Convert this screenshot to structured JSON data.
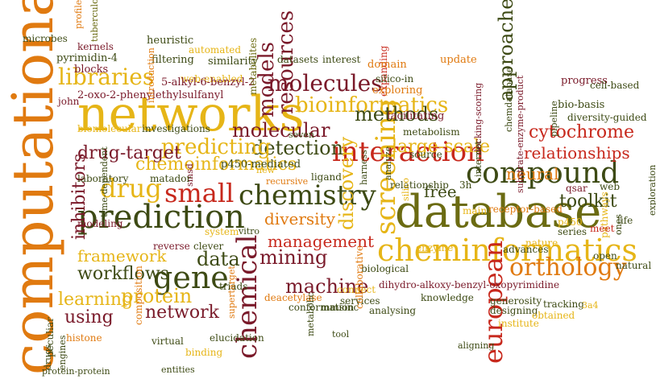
{
  "palette": {
    "orange": "#e07a10",
    "gold": "#e6b517",
    "olive": "#6b6b12",
    "dark_green": "#3d4a14",
    "maroon": "#7a1a2a",
    "red": "#c7281c",
    "brown": "#8a5a18"
  },
  "words": [
    {
      "text": "computational",
      "color": "#e07a10",
      "vertical": true
    },
    {
      "text": "networks",
      "color": "#e6b517",
      "vertical": false
    },
    {
      "text": "database",
      "color": "#6b6b12",
      "vertical": false
    },
    {
      "text": "prediction",
      "color": "#3d4a14",
      "vertical": false
    },
    {
      "text": "cheminformatics",
      "color": "#e6b517",
      "vertical": false
    },
    {
      "text": "compound",
      "color": "#3d4a14",
      "vertical": false
    },
    {
      "text": "chemistry",
      "color": "#3d4a14",
      "vertical": false
    },
    {
      "text": "interaction",
      "color": "#c7281c",
      "vertical": false
    },
    {
      "text": "gene",
      "color": "#3d4a14",
      "vertical": false
    },
    {
      "text": "small",
      "color": "#c7281c",
      "vertical": false
    },
    {
      "text": "drug",
      "color": "#e6b517",
      "vertical": false
    },
    {
      "text": "chemical",
      "color": "#7a1a2a",
      "vertical": true
    },
    {
      "text": "screening",
      "color": "#e6b517",
      "vertical": true
    },
    {
      "text": "orthology",
      "color": "#e07a10",
      "vertical": false
    },
    {
      "text": "european",
      "color": "#c7281c",
      "vertical": true
    },
    {
      "text": "molecules",
      "color": "#7a1a2a",
      "vertical": false
    },
    {
      "text": "bioinformatics",
      "color": "#e6b517",
      "vertical": false
    },
    {
      "text": "methods",
      "color": "#3d4a14",
      "vertical": false
    },
    {
      "text": "libraries",
      "color": "#e6b517",
      "vertical": false
    },
    {
      "text": "models",
      "color": "#7a1a2a",
      "vertical": true
    },
    {
      "text": "resources",
      "color": "#7a1a2a",
      "vertical": true
    },
    {
      "text": "molecular",
      "color": "#7a1a2a",
      "vertical": false
    },
    {
      "text": "detection",
      "color": "#3d4a14",
      "vertical": false
    },
    {
      "text": "discovery",
      "color": "#e6b517",
      "vertical": true
    },
    {
      "text": "large-scale",
      "color": "#e6b517",
      "vertical": false
    },
    {
      "text": "approaches",
      "color": "#3d4a14",
      "vertical": true
    },
    {
      "text": "cytochrome",
      "color": "#c7281c",
      "vertical": false
    },
    {
      "text": "relationships",
      "color": "#c7281c",
      "vertical": false
    },
    {
      "text": "neural",
      "color": "#e07a10",
      "vertical": false
    },
    {
      "text": "toolkit",
      "color": "#3d4a14",
      "vertical": false
    },
    {
      "text": "predicting",
      "color": "#e6b517",
      "vertical": false
    },
    {
      "text": "drug-target",
      "color": "#7a1a2a",
      "vertical": false
    },
    {
      "text": "chemoinformatics",
      "color": "#e6b517",
      "vertical": false
    },
    {
      "text": "inhibitors",
      "color": "#7a1a2a",
      "vertical": true
    },
    {
      "text": "framework",
      "color": "#e6b517",
      "vertical": false
    },
    {
      "text": "data",
      "color": "#3d4a14",
      "vertical": false
    },
    {
      "text": "mining",
      "color": "#7a1a2a",
      "vertical": false
    },
    {
      "text": "management",
      "color": "#c7281c",
      "vertical": false
    },
    {
      "text": "diversity",
      "color": "#e07a10",
      "vertical": false
    },
    {
      "text": "free",
      "color": "#3d4a14",
      "vertical": false
    },
    {
      "text": "workflows",
      "color": "#3d4a14",
      "vertical": false
    },
    {
      "text": "machine",
      "color": "#7a1a2a",
      "vertical": false
    },
    {
      "text": "learning",
      "color": "#e6b517",
      "vertical": false
    },
    {
      "text": "protein",
      "color": "#e6b517",
      "vertical": false
    },
    {
      "text": "network",
      "color": "#7a1a2a",
      "vertical": false
    },
    {
      "text": "using",
      "color": "#7a1a2a",
      "vertical": false
    },
    {
      "text": "microbes",
      "color": "#3d4a14",
      "vertical": false
    },
    {
      "text": "profile",
      "color": "#e07a10",
      "vertical": true
    },
    {
      "text": "tuberculosis",
      "color": "#6b6b12",
      "vertical": true
    },
    {
      "text": "kernels",
      "color": "#7a1a2a",
      "vertical": false
    },
    {
      "text": "pyrimidin-4",
      "color": "#3d4a14",
      "vertical": false
    },
    {
      "text": "blocks",
      "color": "#7a1a2a",
      "vertical": false
    },
    {
      "text": "heuristic",
      "color": "#3d4a14",
      "vertical": false
    },
    {
      "text": "automated",
      "color": "#e6b517",
      "vertical": false
    },
    {
      "text": "filtering",
      "color": "#3d4a14",
      "vertical": false
    },
    {
      "text": "similarity",
      "color": "#3d4a14",
      "vertical": false
    },
    {
      "text": "web-enabled",
      "color": "#e6b517",
      "vertical": false
    },
    {
      "text": "5-alkyl-6-benzyl-2",
      "color": "#7a1a2a",
      "vertical": false
    },
    {
      "text": "john",
      "color": "#7a1a2a",
      "vertical": false
    },
    {
      "text": "2-oxo-2-phenylethylsulfanyl",
      "color": "#7a1a2a",
      "vertical": false
    },
    {
      "text": "introduction",
      "color": "#e07a10",
      "vertical": true
    },
    {
      "text": "metabolites",
      "color": "#6b6b12",
      "vertical": true
    },
    {
      "text": "datasets",
      "color": "#3d4a14",
      "vertical": false
    },
    {
      "text": "interest",
      "color": "#3d4a14",
      "vertical": false
    },
    {
      "text": "expanding",
      "color": "#c7281c",
      "vertical": true
    },
    {
      "text": "silico-in",
      "color": "#3d4a14",
      "vertical": false
    },
    {
      "text": "domain",
      "color": "#e07a10",
      "vertical": false
    },
    {
      "text": "exploring",
      "color": "#e07a10",
      "vertical": false
    },
    {
      "text": "facilitating",
      "color": "#7a1a2a",
      "vertical": false
    },
    {
      "text": "update",
      "color": "#e07a10",
      "vertical": false
    },
    {
      "text": "docking-scoring",
      "color": "#7a1a2a",
      "vertical": true
    },
    {
      "text": "substrate-enzyme-product",
      "color": "#7a1a2a",
      "vertical": true
    },
    {
      "text": "chemdatabase",
      "color": "#3d4a14",
      "vertical": true
    },
    {
      "text": "pipeline",
      "color": "#3d4a14",
      "vertical": true
    },
    {
      "text": "progress",
      "color": "#7a1a2a",
      "vertical": false
    },
    {
      "text": "bio-basis",
      "color": "#3d4a14",
      "vertical": false
    },
    {
      "text": "cell-based",
      "color": "#3d4a14",
      "vertical": false
    },
    {
      "text": "diversity-guided",
      "color": "#3d4a14",
      "vertical": false
    },
    {
      "text": "metabolism",
      "color": "#3d4a14",
      "vertical": false
    },
    {
      "text": "internet",
      "color": "#3d4a14",
      "vertical": true
    },
    {
      "text": "seven",
      "color": "#3d4a14",
      "vertical": false
    },
    {
      "text": "biomolecular",
      "color": "#e6b517",
      "vertical": false
    },
    {
      "text": "investigations",
      "color": "#3d4a14",
      "vertical": false
    },
    {
      "text": "p450-mediated",
      "color": "#3d4a14",
      "vertical": false
    },
    {
      "text": "harness",
      "color": "#3d4a14",
      "vertical": true
    },
    {
      "text": "source",
      "color": "#3d4a14",
      "vertical": false
    },
    {
      "text": "new",
      "color": "#e6b517",
      "vertical": false
    },
    {
      "text": "recursive",
      "color": "#e07a10",
      "vertical": false
    },
    {
      "text": "ligand",
      "color": "#3d4a14",
      "vertical": false
    },
    {
      "text": "laboratory",
      "color": "#3d4a14",
      "vertical": false
    },
    {
      "text": "smsd",
      "color": "#7a1a2a",
      "vertical": true
    },
    {
      "text": "matador",
      "color": "#3d4a14",
      "vertical": false
    },
    {
      "text": "time-dependent",
      "color": "#3d4a14",
      "vertical": true
    },
    {
      "text": "analyze",
      "color": "#3d4a14",
      "vertical": true
    },
    {
      "text": "relationship",
      "color": "#3d4a14",
      "vertical": false
    },
    {
      "text": "3h",
      "color": "#3d4a14",
      "vertical": false
    },
    {
      "text": "silico",
      "color": "#e6b517",
      "vertical": true
    },
    {
      "text": "main",
      "color": "#e6b517",
      "vertical": false
    },
    {
      "text": "receptor-based",
      "color": "#e07a10",
      "vertical": false
    },
    {
      "text": "qsar",
      "color": "#7a1a2a",
      "vertical": false
    },
    {
      "text": "web",
      "color": "#3d4a14",
      "vertical": false
    },
    {
      "text": "exploration",
      "color": "#3d4a14",
      "vertical": true
    },
    {
      "text": "life",
      "color": "#3d4a14",
      "vertical": false
    },
    {
      "text": "p450",
      "color": "#e6b517",
      "vertical": false
    },
    {
      "text": "series",
      "color": "#3d4a14",
      "vertical": false
    },
    {
      "text": "pathways",
      "color": "#e6b517",
      "vertical": true
    },
    {
      "text": "meet",
      "color": "#c7281c",
      "vertical": false
    },
    {
      "text": "ones",
      "color": "#3d4a14",
      "vertical": true
    },
    {
      "text": "open",
      "color": "#3d4a14",
      "vertical": false
    },
    {
      "text": "natural",
      "color": "#3d4a14",
      "vertical": false
    },
    {
      "text": "advances",
      "color": "#3d4a14",
      "vertical": false
    },
    {
      "text": "nature",
      "color": "#e6b517",
      "vertical": false
    },
    {
      "text": "enzyme",
      "color": "#e6b517",
      "vertical": false
    },
    {
      "text": "modeling",
      "color": "#7a1a2a",
      "vertical": false
    },
    {
      "text": "system",
      "color": "#e6b517",
      "vertical": false
    },
    {
      "text": "vitro",
      "color": "#3d4a14",
      "vertical": false
    },
    {
      "text": "reverse",
      "color": "#7a1a2a",
      "vertical": false
    },
    {
      "text": "clever",
      "color": "#3d4a14",
      "vertical": false
    },
    {
      "text": "biological",
      "color": "#3d4a14",
      "vertical": false
    },
    {
      "text": "dihydro-alkoxy-benzyl-oxopyrimidine",
      "color": "#7a1a2a",
      "vertical": false
    },
    {
      "text": "knowledge",
      "color": "#3d4a14",
      "vertical": false
    },
    {
      "text": "generosity",
      "color": "#3d4a14",
      "vertical": false
    },
    {
      "text": "tracking",
      "color": "#3d4a14",
      "vertical": false
    },
    {
      "text": "3a4",
      "color": "#e6b517",
      "vertical": false
    },
    {
      "text": "designing",
      "color": "#3d4a14",
      "vertical": false
    },
    {
      "text": "obtained",
      "color": "#e6b517",
      "vertical": false
    },
    {
      "text": "institute",
      "color": "#e6b517",
      "vertical": false
    },
    {
      "text": "triads",
      "color": "#3d4a14",
      "vertical": false
    },
    {
      "text": "deacetylase",
      "color": "#e07a10",
      "vertical": false
    },
    {
      "text": "conformation",
      "color": "#3d4a14",
      "vertical": false
    },
    {
      "text": "connect",
      "color": "#e6b517",
      "vertical": false
    },
    {
      "text": "mmsinc",
      "color": "#3d4a14",
      "vertical": false
    },
    {
      "text": "services",
      "color": "#3d4a14",
      "vertical": false
    },
    {
      "text": "analysing",
      "color": "#3d4a14",
      "vertical": false
    },
    {
      "text": "aligning",
      "color": "#3d4a14",
      "vertical": false
    },
    {
      "text": "collaborative",
      "color": "#e07a10",
      "vertical": true
    },
    {
      "text": "tool",
      "color": "#3d4a14",
      "vertical": false
    },
    {
      "text": "metabolic",
      "color": "#3d4a14",
      "vertical": true
    },
    {
      "text": "supertarget",
      "color": "#e07a10",
      "vertical": true
    },
    {
      "text": "composition",
      "color": "#e07a10",
      "vertical": true
    },
    {
      "text": "virtual",
      "color": "#3d4a14",
      "vertical": false
    },
    {
      "text": "elucidation",
      "color": "#3d4a14",
      "vertical": false
    },
    {
      "text": "binding",
      "color": "#e6b517",
      "vertical": false
    },
    {
      "text": "entities",
      "color": "#3d4a14",
      "vertical": false
    },
    {
      "text": "peculiar",
      "color": "#3d4a14",
      "vertical": true
    },
    {
      "text": "histone",
      "color": "#e07a10",
      "vertical": false
    },
    {
      "text": "protein-protein",
      "color": "#3d4a14",
      "vertical": false
    },
    {
      "text": "engines",
      "color": "#3d4a14",
      "vertical": true
    },
    {
      "text": "drugs",
      "color": "#3d4a14",
      "vertical": true
    },
    {
      "text": "experiments",
      "color": "#e07a10",
      "vertical": true
    }
  ]
}
